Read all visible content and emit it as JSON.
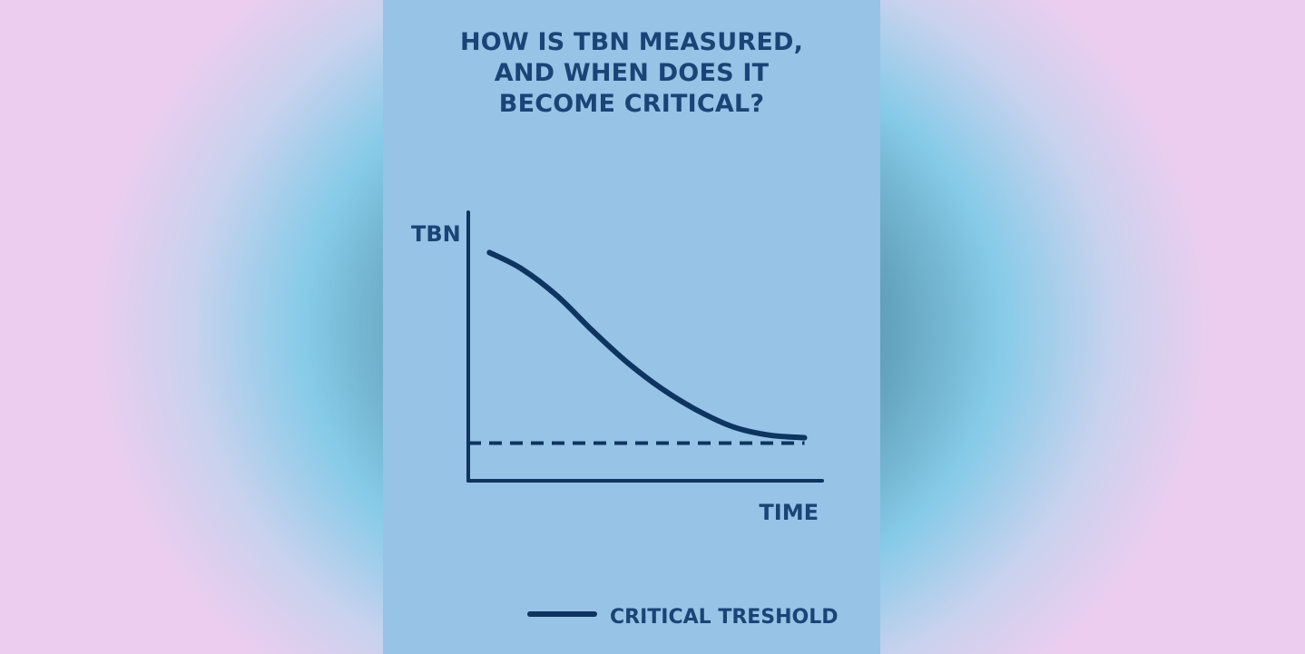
{
  "chart_data": {
    "type": "line",
    "title_lines": [
      "HOW IS TBN MEASURED,",
      "AND WHEN DOES IT",
      "BECOME CRITICAL?"
    ],
    "xlabel": "TIME",
    "ylabel": "TBN",
    "xlim": [
      0,
      10
    ],
    "ylim": [
      0,
      10
    ],
    "grid": false,
    "series": [
      {
        "name": "",
        "style": "solid",
        "x": [
          0.6,
          1.5,
          2.5,
          3.5,
          4.5,
          5.5,
          6.5,
          7.5,
          8.5,
          9.5
        ],
        "y": [
          8.5,
          7.9,
          6.9,
          5.6,
          4.4,
          3.4,
          2.6,
          2.0,
          1.7,
          1.6
        ]
      }
    ],
    "threshold": {
      "name": "CRITICAL TRESHOLD",
      "y": 1.4,
      "x_range": [
        0,
        9.5
      ],
      "style": "dashed"
    },
    "legend": {
      "position": "bottom-right",
      "entries": [
        "CRITICAL TRESHOLD"
      ]
    },
    "colors": {
      "line": "#0d355f",
      "text": "#1a4476",
      "card": "#97c3e6"
    }
  }
}
